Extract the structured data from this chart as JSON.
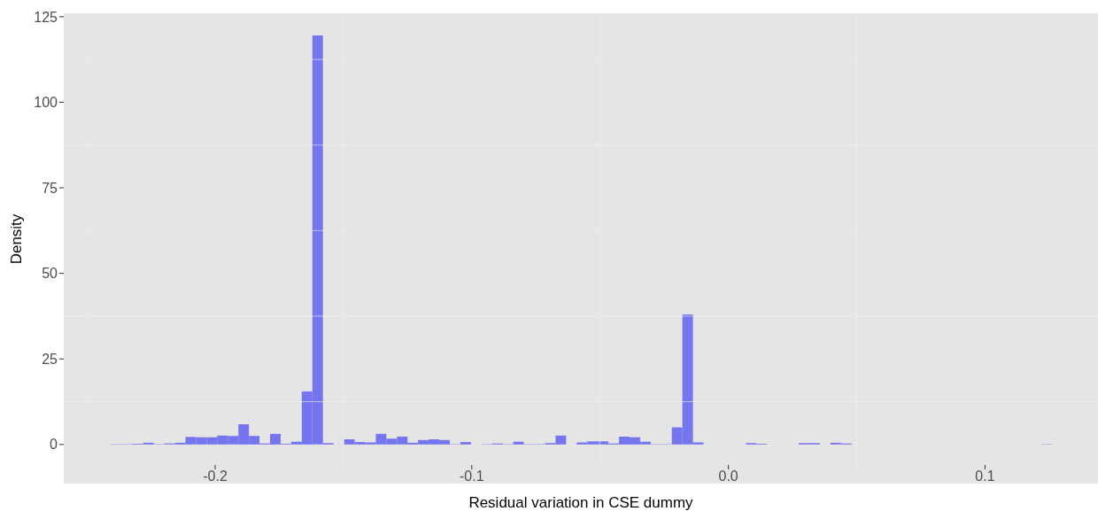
{
  "chart_data": {
    "type": "histogram",
    "xlabel": "Residual variation in CSE dummy",
    "ylabel": "Density",
    "color": "#7575f0",
    "bins": [
      -0.2404,
      -0.23628,
      -0.23216,
      -0.22804,
      -0.22392,
      -0.2198,
      -0.21568,
      -0.21156,
      -0.20744,
      -0.20332,
      -0.1992,
      -0.19508,
      -0.19096,
      -0.18684,
      -0.18272,
      -0.1786,
      -0.17448,
      -0.17036,
      -0.16624,
      -0.16212,
      -0.158,
      -0.15388,
      -0.14976,
      -0.14564,
      -0.14152,
      -0.1374,
      -0.13328,
      -0.12916,
      -0.12504,
      -0.12092,
      -0.1168,
      -0.11268,
      -0.10856,
      -0.10444,
      -0.10032,
      -0.0962,
      -0.09208,
      -0.08796,
      -0.08384,
      -0.07972,
      -0.0756,
      -0.07148,
      -0.06736,
      -0.06324,
      -0.05912,
      -0.055,
      -0.05088,
      -0.04676,
      -0.04264,
      -0.03852,
      -0.0344,
      -0.03028,
      -0.02616,
      -0.02204,
      -0.01792,
      -0.0138,
      -0.00968,
      -0.00556,
      -0.00144,
      0.00268,
      0.0068,
      0.01092,
      0.01504,
      0.01916,
      0.02328,
      0.0274,
      0.03152,
      0.03564,
      0.03976,
      0.04388,
      0.048,
      0.05212,
      0.05624,
      0.06036,
      0.06448,
      0.0686,
      0.07272,
      0.07684,
      0.08096,
      0.08508,
      0.0892,
      0.09332,
      0.09744,
      0.10156,
      0.10568,
      0.1098,
      0.11392,
      0.11804,
      0.12216,
      0.12628
    ],
    "values": [
      0.1,
      0.1,
      0.2,
      0.5,
      0.1,
      0.3,
      0.5,
      2.2,
      2.1,
      2.1,
      2.6,
      2.5,
      5.9,
      2.5,
      0.3,
      3.1,
      0.2,
      0.8,
      15.5,
      119.5,
      0.4,
      0,
      1.5,
      0.7,
      0.6,
      3.1,
      1.7,
      2.3,
      0.5,
      1.3,
      1.5,
      1.3,
      0.1,
      0.7,
      0,
      0.1,
      0.3,
      0.1,
      0.8,
      0.1,
      0.1,
      0.4,
      2.6,
      0,
      0.6,
      0.9,
      0.9,
      0.3,
      2.3,
      2.1,
      0.8,
      0.1,
      0.1,
      5.0,
      38.0,
      0.6,
      0,
      0,
      0,
      0,
      0.4,
      0.2,
      0,
      0,
      0,
      0.4,
      0.4,
      0,
      0.5,
      0.3,
      0,
      0,
      0,
      0,
      0,
      0,
      0,
      0,
      0,
      0,
      0,
      0,
      0,
      0,
      0,
      0,
      0,
      0,
      0.1
    ],
    "xlim": [
      -0.259,
      0.144
    ],
    "xticks": [
      -0.2,
      -0.1,
      {
        "value": 0,
        "label": "0.0"
      },
      0.1
    ],
    "ylim": [
      -6,
      126
    ],
    "yticks": [
      0,
      25,
      50,
      75,
      100,
      125
    ],
    "grid": true
  }
}
